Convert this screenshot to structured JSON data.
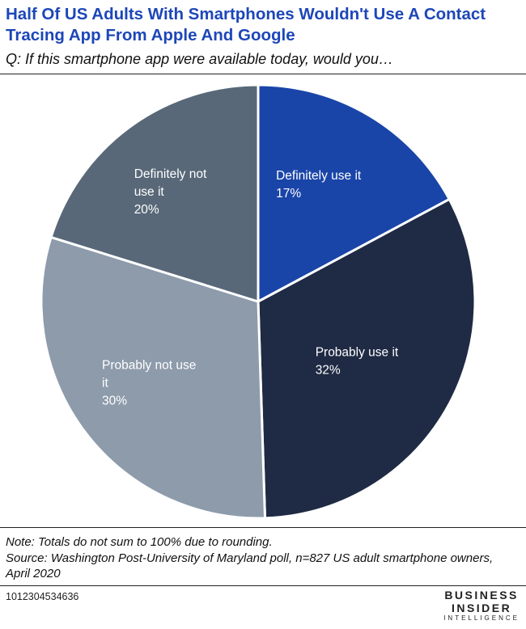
{
  "chart_data": {
    "type": "pie",
    "title": "Half Of US Adults With Smartphones Wouldn't Use A Contact Tracing App From Apple And Google",
    "subtitle": "Q: If this smartphone app were available today, would you…",
    "categories": [
      "Definitely use it",
      "Probably use it",
      "Probably not use it",
      "Definitely not use it"
    ],
    "values": [
      17,
      32,
      30,
      20
    ],
    "label_lines": [
      [
        "Definitely use it",
        "17%"
      ],
      [
        "Probably use it",
        "32%"
      ],
      [
        "Probably not use",
        "it",
        "30%"
      ],
      [
        "Definitely not",
        "use it",
        "20%"
      ]
    ],
    "colors": [
      "#1a45a8",
      "#1f2a44",
      "#8d9bab",
      "#586878"
    ]
  },
  "notes": {
    "rounding": "Note: Totals do not sum to 100% due to rounding.",
    "source": "Source: Washington Post-University of Maryland poll, n=827 US adult smartphone owners, April 2020"
  },
  "footer": {
    "chart_id": "1012304534636",
    "logo_line1": "BUSINESS",
    "logo_line2": "INSIDER",
    "logo_line3": "INTELLIGENCE"
  }
}
